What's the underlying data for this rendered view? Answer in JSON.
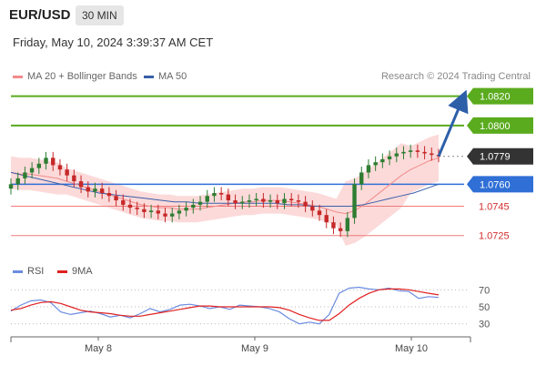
{
  "header": {
    "symbol": "EUR/USD",
    "timeframe": "30 MIN",
    "timestamp": "Friday, May 10, 2024 3:39:37 AM CET"
  },
  "legend": {
    "ma20_label": "MA 20 + Bollinger Bands",
    "ma50_label": "MA 50",
    "ma20_color": "#f28b8b",
    "ma50_color": "#3a5fa8",
    "research": "Research © 2024 Trading Central"
  },
  "rsi_legend": {
    "rsi_label": "RSI",
    "ma_label": "9MA",
    "rsi_color": "#6b8ce0",
    "ma_color": "#e02020"
  },
  "colors": {
    "green_level": "#5aab1e",
    "blue_level": "#2f6fd6",
    "red_level": "#f07a7a",
    "up_candle": "#2e7d32",
    "down_candle": "#c62828",
    "band_fill": "#fbd3d3",
    "current_price_bg": "#333333",
    "arrow": "#2d5fa8"
  },
  "chart_data": [
    {
      "type": "candlestick",
      "title": "EUR/USD 30 MIN",
      "x_tick_labels": [
        "May 8",
        "May 9",
        "May 10"
      ],
      "ylim": [
        1.0718,
        1.0826
      ],
      "levels": [
        {
          "label": "1.0820",
          "value": 1.082,
          "kind": "resistance"
        },
        {
          "label": "1.0800",
          "value": 1.08,
          "kind": "resistance"
        },
        {
          "label": "1.0779",
          "value": 1.0779,
          "kind": "current"
        },
        {
          "label": "1.0760",
          "value": 1.076,
          "kind": "pivot"
        },
        {
          "label": "1.0745",
          "value": 1.0745,
          "kind": "support"
        },
        {
          "label": "1.0725",
          "value": 1.0725,
          "kind": "support"
        }
      ],
      "closes": [
        1.076,
        1.0764,
        1.0768,
        1.0771,
        1.0774,
        1.0778,
        1.0773,
        1.077,
        1.0766,
        1.0762,
        1.0758,
        1.0755,
        1.0757,
        1.0754,
        1.0752,
        1.0749,
        1.0746,
        1.0744,
        1.0743,
        1.0741,
        1.0742,
        1.074,
        1.0738,
        1.074,
        1.0742,
        1.0744,
        1.0746,
        1.0748,
        1.0752,
        1.0754,
        1.0753,
        1.0749,
        1.0747,
        1.0748,
        1.0749,
        1.075,
        1.0748,
        1.0749,
        1.0747,
        1.075,
        1.0749,
        1.0748,
        1.0745,
        1.0742,
        1.0739,
        1.0734,
        1.073,
        1.0728,
        1.0737,
        1.076,
        1.0768,
        1.0773,
        1.0775,
        1.0777,
        1.0779,
        1.0781,
        1.0782,
        1.0783,
        1.0782,
        1.0781,
        1.078,
        1.0779
      ],
      "ma20": [
        1.0768,
        1.0767,
        1.0767,
        1.0766,
        1.0765,
        1.0764,
        1.0762,
        1.076,
        1.0758,
        1.0756,
        1.0754,
        1.0752,
        1.075,
        1.0748,
        1.0746,
        1.0745,
        1.0744,
        1.0744,
        1.0743,
        1.0743,
        1.0743,
        1.0744,
        1.0745,
        1.0746,
        1.0747,
        1.0748,
        1.0748,
        1.0749,
        1.0749,
        1.0749,
        1.0748,
        1.0747,
        1.0746,
        1.0745,
        1.0743,
        1.0741,
        1.074,
        1.0742,
        1.0746,
        1.0751,
        1.0756,
        1.0761,
        1.0766,
        1.077,
        1.0773,
        1.0776,
        1.0778
      ],
      "ma50": [
        1.0768,
        1.0766,
        1.0764,
        1.0762,
        1.076,
        1.0758,
        1.0756,
        1.0754,
        1.0753,
        1.0752,
        1.0751,
        1.075,
        1.0749,
        1.0748,
        1.0748,
        1.0747,
        1.0747,
        1.0747,
        1.0747,
        1.0747,
        1.0747,
        1.0747,
        1.0746,
        1.0746,
        1.0745,
        1.0745,
        1.0745,
        1.0745,
        1.0746,
        1.0748,
        1.075,
        1.0752,
        1.0754,
        1.0757,
        1.076
      ]
    },
    {
      "type": "line",
      "title": "RSI",
      "y_tick_labels": [
        "70",
        "50",
        "30"
      ],
      "ylim": [
        20,
        80
      ],
      "series": [
        {
          "name": "RSI",
          "values": [
            45,
            52,
            57,
            58,
            55,
            44,
            41,
            43,
            45,
            42,
            38,
            40,
            37,
            42,
            48,
            44,
            47,
            52,
            53,
            51,
            48,
            50,
            47,
            52,
            51,
            50,
            48,
            44,
            36,
            30,
            32,
            30,
            41,
            66,
            72,
            73,
            71,
            70,
            72,
            69,
            68,
            60,
            62,
            61
          ]
        },
        {
          "name": "9MA",
          "values": [
            46,
            48,
            52,
            55,
            56,
            54,
            50,
            46,
            44,
            43,
            42,
            40,
            39,
            39,
            41,
            43,
            45,
            47,
            49,
            51,
            51,
            50,
            50,
            50,
            50,
            50,
            50,
            49,
            46,
            41,
            37,
            34,
            34,
            42,
            52,
            60,
            66,
            70,
            71,
            71,
            70,
            68,
            66,
            64
          ]
        }
      ]
    }
  ]
}
